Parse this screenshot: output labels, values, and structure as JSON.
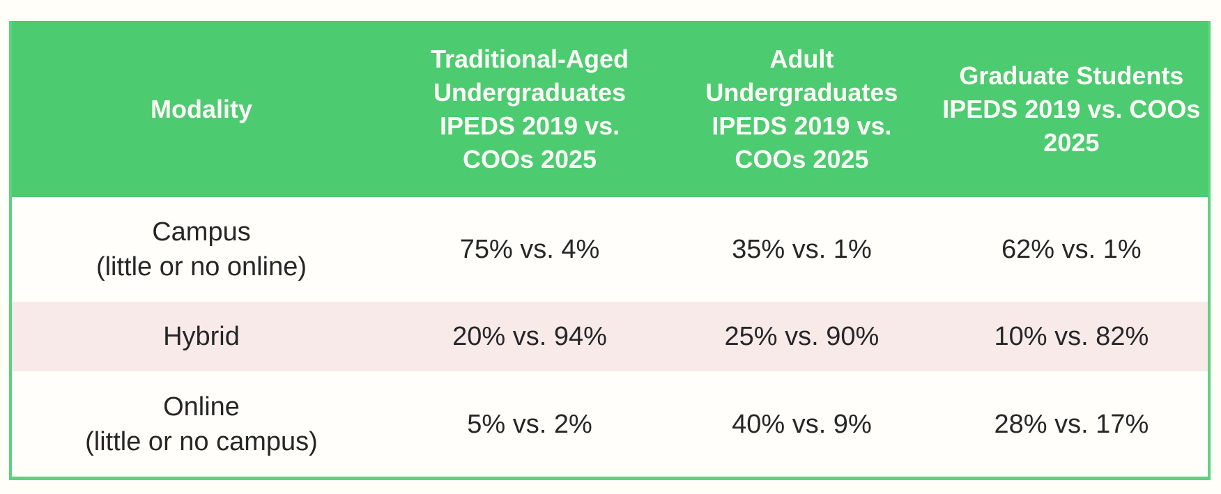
{
  "colors": {
    "header_green": "#4ccb71",
    "border_green": "#5ed17f",
    "hybrid_row_pink": "#f9eaea",
    "header_text": "#fdfdf7",
    "body_text": "#262626",
    "page_background": "#fffef9"
  },
  "table": {
    "columns": [
      {
        "label": "Modality",
        "lines": [
          "Modality"
        ]
      },
      {
        "label": "Traditional-Aged Undergraduates IPEDS 2019 vs. COOs 2025",
        "lines": [
          "Traditional-Aged",
          "Undergraduates",
          "IPEDS 2019 vs.",
          "COOs 2025"
        ]
      },
      {
        "label": "Adult Undergraduates IPEDS 2019 vs. COOs 2025",
        "lines": [
          "Adult",
          "Undergraduates",
          "IPEDS 2019 vs.",
          "COOs 2025"
        ]
      },
      {
        "label": "Graduate Students IPEDS 2019 vs. COOs 2025",
        "lines": [
          "Graduate Students",
          "IPEDS 2019 vs. COOs",
          "2025"
        ]
      }
    ],
    "rows": [
      {
        "modality_lines": [
          "Campus",
          "(little or no online)"
        ],
        "values": [
          "75% vs. 4%",
          "35% vs. 1%",
          "62% vs. 1%"
        ]
      },
      {
        "modality_lines": [
          "Hybrid"
        ],
        "values": [
          "20% vs. 94%",
          "25% vs. 90%",
          "10% vs. 82%"
        ]
      },
      {
        "modality_lines": [
          "Online",
          "(little or no campus)"
        ],
        "values": [
          "5% vs. 2%",
          "40% vs. 9%",
          "28% vs. 17%"
        ]
      }
    ]
  }
}
